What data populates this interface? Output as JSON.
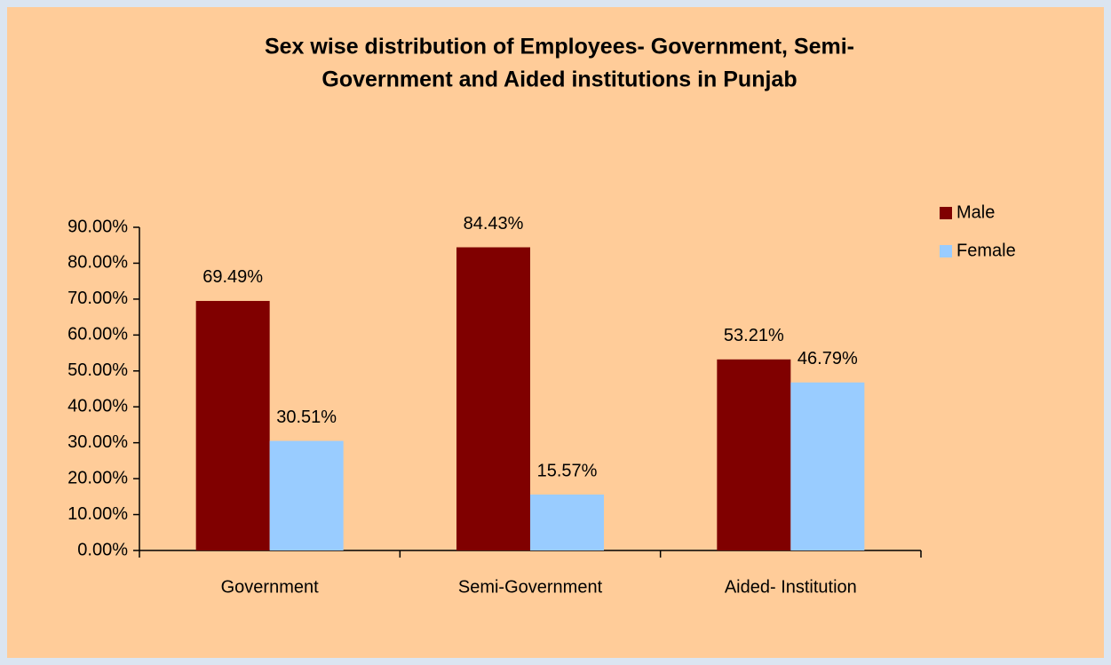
{
  "chart_data": {
    "type": "bar",
    "title": [
      "Sex wise distribution of Employees- Government, Semi-",
      "Government and Aided institutions in Punjab"
    ],
    "categories": [
      "Government",
      "Semi-Government",
      "Aided- Institution"
    ],
    "series": [
      {
        "name": "Male",
        "color": "#800000",
        "values": [
          69.49,
          84.43,
          53.21
        ],
        "value_labels": [
          "69.49%",
          "84.43%",
          "53.21%"
        ]
      },
      {
        "name": "Female",
        "color": "#99ccff",
        "values": [
          30.51,
          15.57,
          46.79
        ],
        "value_labels": [
          "30.51%",
          "15.57%",
          "46.79%"
        ]
      }
    ],
    "ylim": [
      0,
      90
    ],
    "yticks": [
      {
        "value": 0,
        "label": "0.00%"
      },
      {
        "value": 10,
        "label": "10.00%"
      },
      {
        "value": 20,
        "label": "20.00%"
      },
      {
        "value": 30,
        "label": "30.00%"
      },
      {
        "value": 40,
        "label": "40.00%"
      },
      {
        "value": 50,
        "label": "50.00%"
      },
      {
        "value": 60,
        "label": "60.00%"
      },
      {
        "value": 70,
        "label": "70.00%"
      },
      {
        "value": 80,
        "label": "80.00%"
      },
      {
        "value": 90,
        "label": "90.00%"
      }
    ],
    "legend": "right",
    "grid": false
  }
}
